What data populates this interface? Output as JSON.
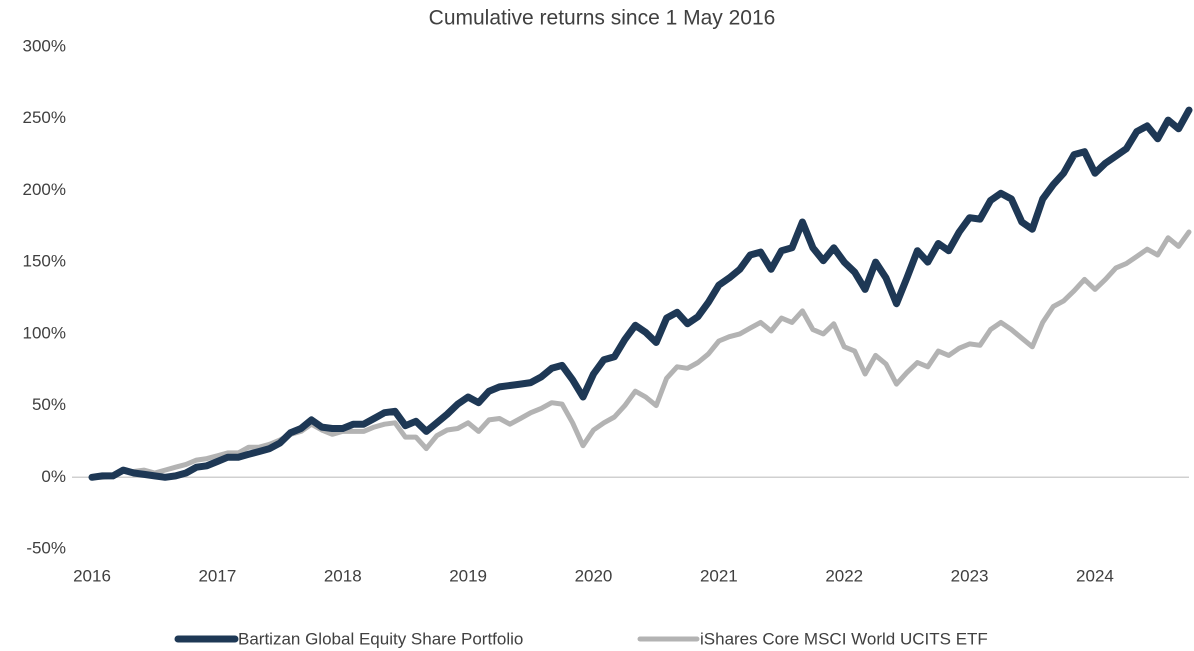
{
  "chart_data": {
    "type": "line",
    "title": "Cumulative returns since 1 May 2016",
    "categories": [
      "2016",
      null,
      null,
      null,
      null,
      null,
      null,
      null,
      null,
      null,
      null,
      null,
      "2017",
      null,
      null,
      null,
      null,
      null,
      null,
      null,
      null,
      null,
      null,
      null,
      "2018",
      null,
      null,
      null,
      null,
      null,
      null,
      null,
      null,
      null,
      null,
      null,
      "2019",
      null,
      null,
      null,
      null,
      null,
      null,
      null,
      null,
      null,
      null,
      null,
      "2020",
      null,
      null,
      null,
      null,
      null,
      null,
      null,
      null,
      null,
      null,
      null,
      "2021",
      null,
      null,
      null,
      null,
      null,
      null,
      null,
      null,
      null,
      null,
      null,
      "2022",
      null,
      null,
      null,
      null,
      null,
      null,
      null,
      null,
      null,
      null,
      null,
      "2023",
      null,
      null,
      null,
      null,
      null,
      null,
      null,
      null,
      null,
      null,
      null,
      "2024",
      null,
      null,
      null,
      null,
      null,
      null,
      null,
      null,
      null
    ],
    "series": [
      {
        "name": "Bartizan Global Equity Share Portfolio",
        "color": "#1e3855",
        "values": [
          0,
          1,
          1,
          5,
          3,
          2,
          1,
          0,
          1,
          3,
          7,
          8,
          11,
          14,
          14,
          16,
          18,
          20,
          24,
          31,
          34,
          40,
          35,
          34,
          34,
          37,
          37,
          41,
          45,
          46,
          36,
          39,
          32,
          38,
          44,
          51,
          56,
          52,
          60,
          63,
          64,
          65,
          66,
          70,
          76,
          78,
          68,
          56,
          72,
          82,
          84,
          96,
          106,
          101,
          94,
          111,
          115,
          107,
          112,
          122,
          134,
          139,
          145,
          155,
          157,
          145,
          158,
          160,
          178,
          160,
          151,
          160,
          150,
          143,
          131,
          150,
          139,
          121,
          139,
          158,
          150,
          163,
          158,
          171,
          181,
          180,
          193,
          198,
          194,
          178,
          173,
          194,
          204,
          212,
          225,
          227,
          212,
          219,
          224,
          229,
          241,
          245,
          236,
          249,
          243,
          256
        ]
      },
      {
        "name": "iShares Core MSCI World UCITS ETF",
        "color": "#b3b3b3",
        "values": [
          0,
          0,
          1,
          4,
          4,
          5,
          3,
          5,
          7,
          9,
          12,
          13,
          15,
          17,
          17,
          21,
          21,
          23,
          26,
          30,
          32,
          37,
          33,
          30,
          32,
          32,
          32,
          35,
          37,
          38,
          28,
          28,
          20,
          29,
          33,
          34,
          38,
          32,
          40,
          41,
          37,
          41,
          45,
          48,
          52,
          51,
          38,
          22,
          33,
          38,
          42,
          50,
          60,
          56,
          50,
          69,
          77,
          76,
          80,
          86,
          95,
          98,
          100,
          104,
          108,
          102,
          111,
          108,
          116,
          103,
          100,
          107,
          91,
          88,
          72,
          85,
          79,
          65,
          73,
          80,
          77,
          88,
          85,
          90,
          93,
          92,
          103,
          108,
          103,
          97,
          91,
          108,
          119,
          123,
          130,
          138,
          131,
          138,
          146,
          149,
          154,
          159,
          155,
          167,
          161,
          171
        ]
      }
    ],
    "ylim": [
      -50,
      300
    ],
    "yticks": [
      {
        "value": -50,
        "label": "-50%"
      },
      {
        "value": 0,
        "label": "0%"
      },
      {
        "value": 50,
        "label": "50%"
      },
      {
        "value": 100,
        "label": "100%"
      },
      {
        "value": 150,
        "label": "150%"
      },
      {
        "value": 200,
        "label": "200%"
      },
      {
        "value": 250,
        "label": "250%"
      },
      {
        "value": 300,
        "label": "300%"
      }
    ],
    "legend": "bottom"
  }
}
